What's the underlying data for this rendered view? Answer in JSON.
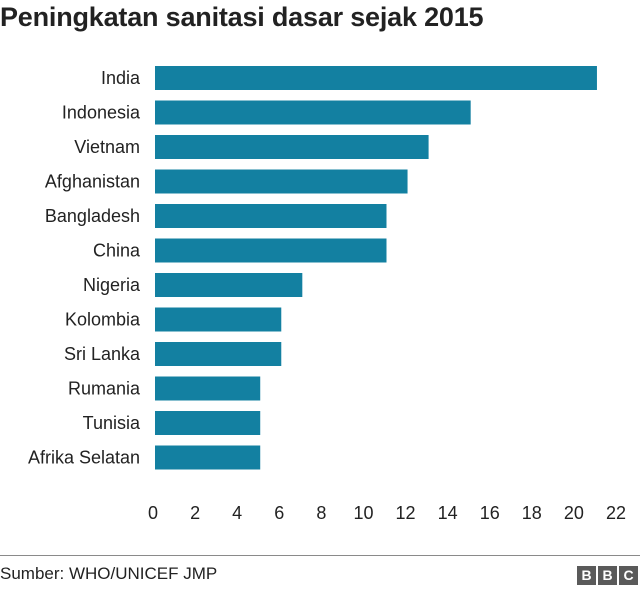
{
  "chart_data": {
    "type": "bar",
    "orientation": "horizontal",
    "title": "Peningkatan sanitasi dasar sejak 2015",
    "categories": [
      "India",
      "Indonesia",
      "Vietnam",
      "Afghanistan",
      "Bangladesh",
      "China",
      "Nigeria",
      "Kolombia",
      "Sri Lanka",
      "Rumania",
      "Tunisia",
      "Afrika Selatan"
    ],
    "values": [
      21,
      15,
      13,
      12,
      11,
      11,
      7,
      6,
      6,
      5,
      5,
      5
    ],
    "xlim": [
      0,
      22
    ],
    "xticks": [
      0,
      2,
      4,
      6,
      8,
      10,
      12,
      14,
      16,
      18,
      20,
      22
    ],
    "grid": false,
    "bar_color": "#1380a1"
  },
  "footer": {
    "source": "Sumber: WHO/UNICEF JMP",
    "logo_letters": [
      "B",
      "B",
      "C"
    ]
  }
}
